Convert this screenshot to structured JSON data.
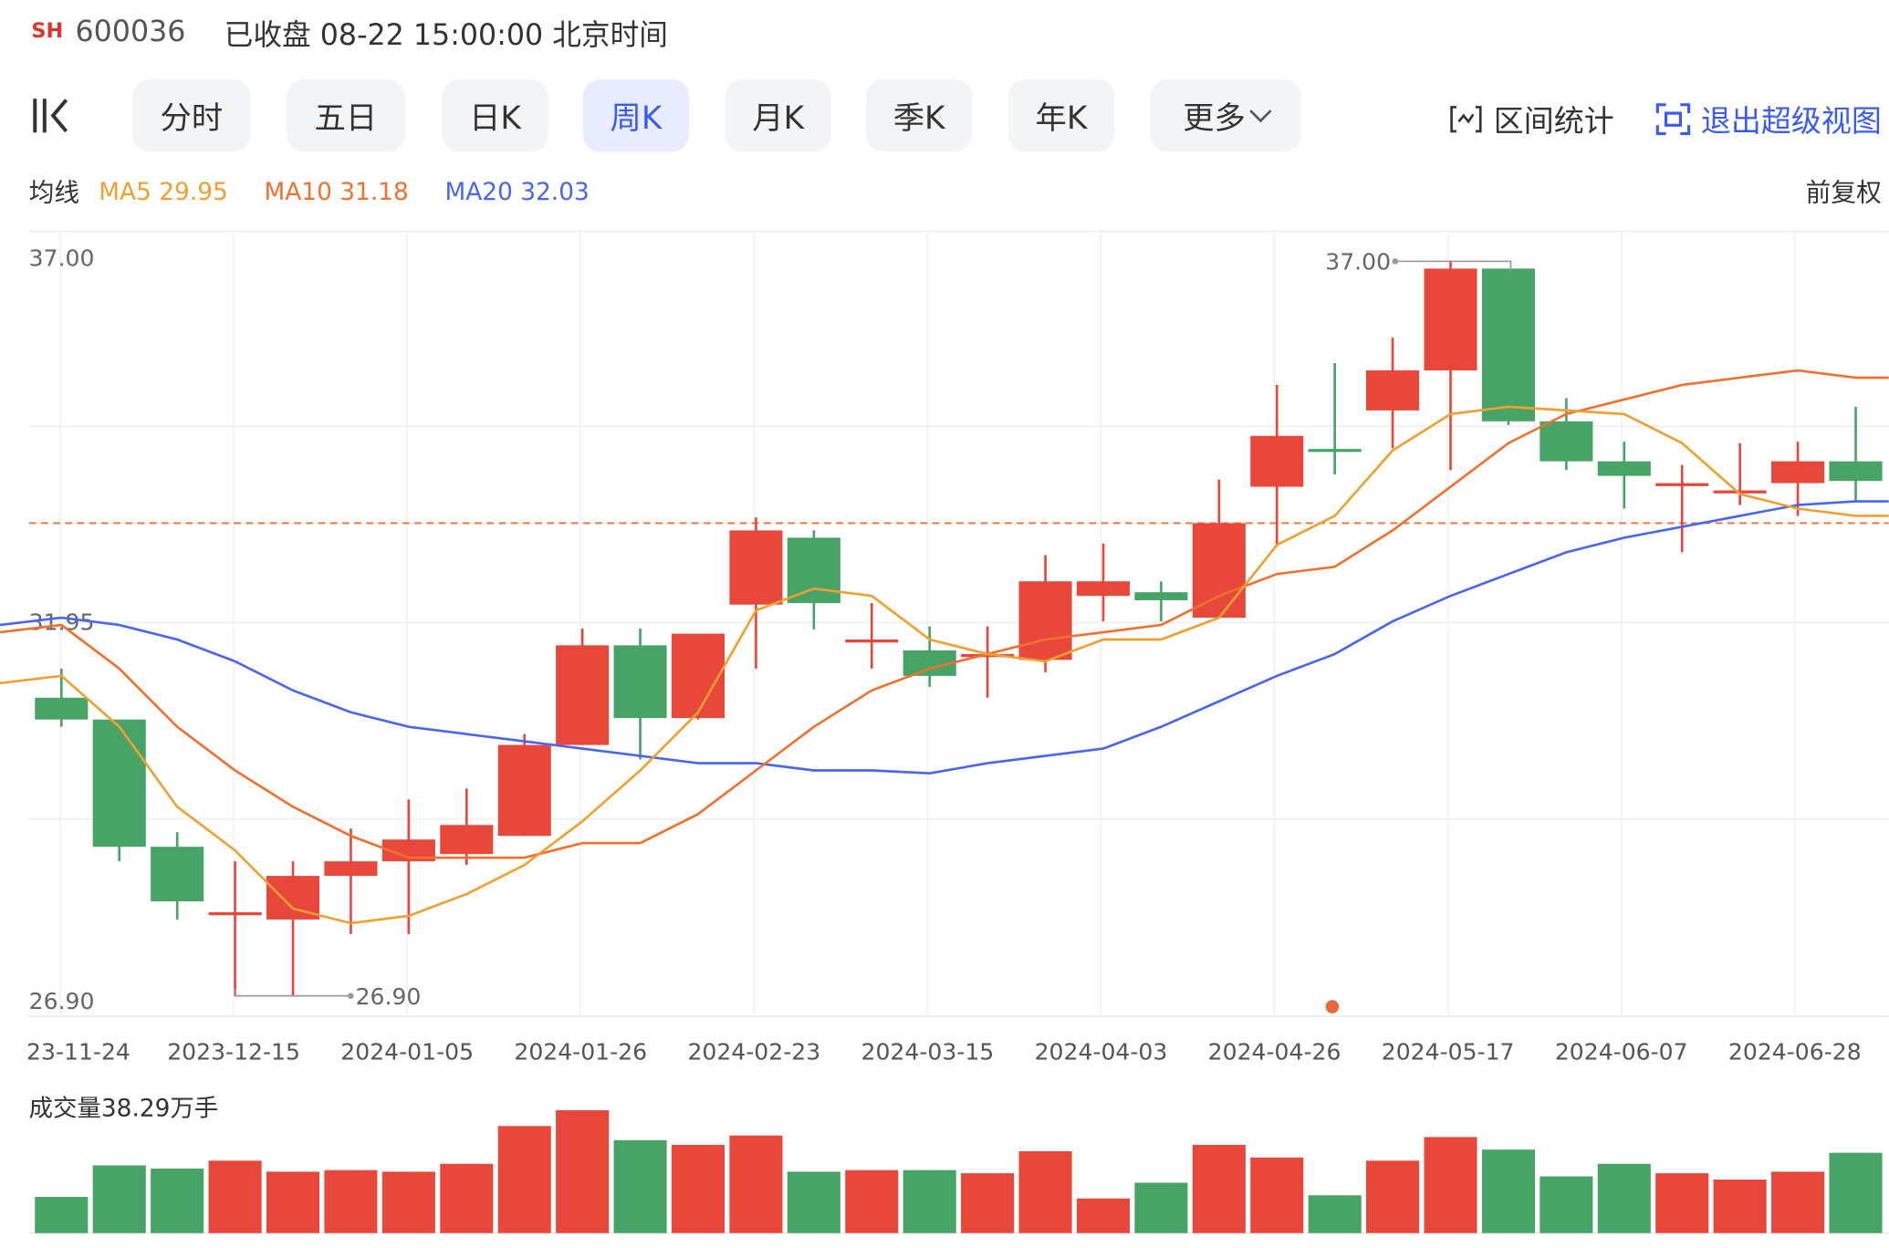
{
  "header": {
    "exchange": "SH",
    "code": "600036",
    "status": "已收盘 08-22 15:00:00 北京时间"
  },
  "toolbar": {
    "tabs": [
      {
        "label": "分时"
      },
      {
        "label": "五日"
      },
      {
        "label": "日K"
      },
      {
        "label": "周K",
        "active": true
      },
      {
        "label": "月K"
      },
      {
        "label": "季K"
      },
      {
        "label": "年K"
      },
      {
        "label": "更多"
      }
    ],
    "interval_stats": "区间统计",
    "exit_super_view": "退出超级视图"
  },
  "ma_legend": {
    "label": "均线",
    "ma5": "MA5 29.95",
    "ma10": "MA10 31.18",
    "ma20": "MA20 32.03",
    "adjust": "前复权"
  },
  "colors": {
    "up": "#e8473b",
    "down": "#47a466",
    "ma5": "#f0a030",
    "ma10": "#f07030",
    "ma20": "#4a66ee",
    "accent": "#3a5cf0",
    "ref_line": "#f07030"
  },
  "price_axis": {
    "top_label": "37.00",
    "mid_label": "31.95",
    "bottom_label": "26.90",
    "max_marker": "37.00",
    "min_marker": "26.90"
  },
  "date_axis": [
    "23-11-24",
    "2023-12-15",
    "2024-01-05",
    "2024-01-26",
    "2024-02-23",
    "2024-03-15",
    "2024-04-03",
    "2024-04-26",
    "2024-05-17",
    "2024-06-07",
    "2024-06-28"
  ],
  "volume_title": "成交量38.29万手",
  "chart_data": {
    "type": "candlestick",
    "ylim": [
      26.9,
      37.0
    ],
    "reference_price": 33.4,
    "candles": [
      [
        31.0,
        30.7,
        31.4,
        30.6
      ],
      [
        30.7,
        28.95,
        30.7,
        28.75
      ],
      [
        28.95,
        28.2,
        29.15,
        27.95
      ],
      [
        28.05,
        28.05,
        28.75,
        26.9
      ],
      [
        27.95,
        28.55,
        28.75,
        26.9
      ],
      [
        28.55,
        28.75,
        29.2,
        27.75
      ],
      [
        28.75,
        29.05,
        29.6,
        27.75
      ],
      [
        28.85,
        29.25,
        29.75,
        28.7
      ],
      [
        29.1,
        30.35,
        30.5,
        29.1
      ],
      [
        30.35,
        31.72,
        31.95,
        30.35
      ],
      [
        31.72,
        30.72,
        31.95,
        30.15
      ],
      [
        30.72,
        31.88,
        31.88,
        30.7
      ],
      [
        32.28,
        33.3,
        33.48,
        31.4
      ],
      [
        33.2,
        32.3,
        33.3,
        31.94
      ],
      [
        31.8,
        31.8,
        32.3,
        31.4
      ],
      [
        31.65,
        31.3,
        31.98,
        31.15
      ],
      [
        31.6,
        31.6,
        31.98,
        31.0
      ],
      [
        31.52,
        32.6,
        32.96,
        31.35
      ],
      [
        32.4,
        32.6,
        33.12,
        32.05
      ],
      [
        32.45,
        32.34,
        32.6,
        32.05
      ],
      [
        32.1,
        33.4,
        34.0,
        32.1
      ],
      [
        33.9,
        34.6,
        35.3,
        33.1
      ],
      [
        34.42,
        34.38,
        35.6,
        34.07
      ],
      [
        34.95,
        35.5,
        35.95,
        34.43
      ],
      [
        35.5,
        36.9,
        37.0,
        34.13
      ],
      [
        36.9,
        34.8,
        36.9,
        34.75
      ],
      [
        34.8,
        34.25,
        35.12,
        34.13
      ],
      [
        34.25,
        34.05,
        34.52,
        33.6
      ],
      [
        33.95,
        33.95,
        34.2,
        33.0
      ],
      [
        33.85,
        33.85,
        34.5,
        33.65
      ],
      [
        33.95,
        34.25,
        34.52,
        33.5
      ],
      [
        34.25,
        33.98,
        35.0,
        33.7
      ]
    ],
    "ma5": [
      31.3,
      30.6,
      29.5,
      28.9,
      28.1,
      27.9,
      28.0,
      28.3,
      28.7,
      29.3,
      30.0,
      30.8,
      32.2,
      32.5,
      32.4,
      31.8,
      31.6,
      31.5,
      31.8,
      31.8,
      32.1,
      33.1,
      33.5,
      34.4,
      34.9,
      35.0,
      34.95,
      34.9,
      34.5,
      33.8,
      33.6,
      33.5
    ],
    "ma10": [
      32.0,
      31.4,
      30.6,
      30.0,
      29.5,
      29.1,
      28.8,
      28.8,
      28.8,
      29.0,
      29.0,
      29.4,
      30.0,
      30.6,
      31.1,
      31.4,
      31.6,
      31.8,
      31.9,
      32.0,
      32.4,
      32.7,
      32.8,
      33.3,
      33.9,
      34.5,
      34.9,
      35.1,
      35.3,
      35.4,
      35.5,
      35.4
    ],
    "ma20": [
      32.1,
      32.0,
      31.8,
      31.5,
      31.1,
      30.8,
      30.6,
      30.5,
      30.4,
      30.3,
      30.2,
      30.1,
      30.1,
      30.0,
      30.0,
      29.96,
      30.1,
      30.2,
      30.3,
      30.6,
      30.95,
      31.3,
      31.6,
      32.05,
      32.4,
      32.7,
      33.0,
      33.2,
      33.35,
      33.5,
      33.65,
      33.7
    ],
    "volume": [
      0.23,
      0.43,
      0.41,
      0.46,
      0.39,
      0.4,
      0.39,
      0.44,
      0.68,
      0.78,
      0.59,
      0.56,
      0.62,
      0.39,
      0.4,
      0.4,
      0.38,
      0.52,
      0.22,
      0.32,
      0.56,
      0.48,
      0.24,
      0.46,
      0.61,
      0.53,
      0.36,
      0.44,
      0.38,
      0.34,
      0.39,
      0.51
    ]
  }
}
